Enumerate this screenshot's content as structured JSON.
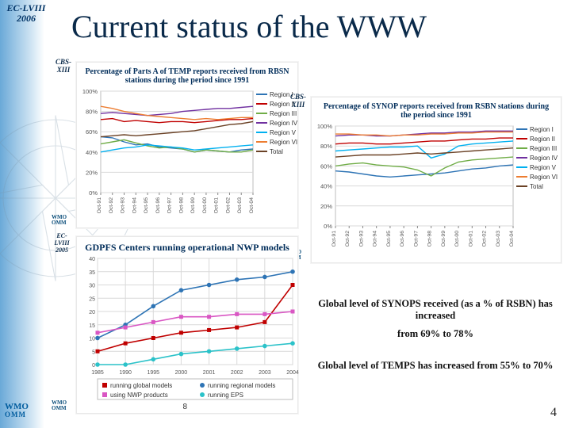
{
  "header": {
    "ec": "EC-LVIII",
    "year": "2006",
    "title": "Current status of the WWW"
  },
  "logo": {
    "wmo": "WMO",
    "omm": "OMM"
  },
  "slide_number": "4",
  "regions_legend": [
    "Region I",
    "Region II",
    "Region III",
    "Region IV",
    "Region V",
    "Region VI",
    "Total"
  ],
  "region_colors": [
    "#2e74b5",
    "#c00000",
    "#70ad47",
    "#7030a0",
    "#00b0f0",
    "#ed7d31",
    "#6b4226"
  ],
  "years": [
    "Oct-91",
    "Oct-92",
    "Oct-93",
    "Oct-94",
    "Oct-95",
    "Oct-96",
    "Oct-97",
    "Oct-98",
    "Oct-99",
    "Oct-00",
    "Oct-01",
    "Oct-02",
    "Oct-03",
    "Oct-04"
  ],
  "panel_temp": {
    "badge": "CBS-XIII",
    "title": "Percentage of Parts A of TEMP reports received from RBSN stations during the period since 1991",
    "ylim": [
      0,
      100
    ],
    "ytick_step": 20,
    "series": {
      "Region I": [
        55,
        54,
        50,
        47,
        48,
        45,
        44,
        43,
        40,
        42,
        41,
        40,
        42,
        43
      ],
      "Region II": [
        72,
        73,
        70,
        71,
        70,
        69,
        70,
        70,
        69,
        70,
        71,
        72,
        72,
        73
      ],
      "Region III": [
        48,
        50,
        52,
        49,
        46,
        44,
        45,
        43,
        40,
        42,
        41,
        40,
        40,
        42
      ],
      "Region IV": [
        78,
        79,
        78,
        77,
        76,
        77,
        78,
        80,
        81,
        82,
        83,
        83,
        84,
        85
      ],
      "Region V": [
        40,
        42,
        44,
        45,
        47,
        46,
        45,
        44,
        42,
        43,
        44,
        45,
        46,
        47
      ],
      "Region VI": [
        85,
        83,
        80,
        78,
        76,
        75,
        74,
        73,
        72,
        73,
        72,
        73,
        74,
        74
      ],
      "Total": [
        55,
        56,
        57,
        56,
        57,
        58,
        59,
        60,
        61,
        63,
        65,
        67,
        68,
        70
      ]
    },
    "grid_color": "#d9d9d9",
    "line_width": 1.4
  },
  "panel_synop": {
    "badge": "CBS-XIII",
    "title": "Percentage of SYNOP reports received from RSBN stations during the period since 1991",
    "ylim": [
      0,
      100
    ],
    "ytick_step": 20,
    "series": {
      "Region I": [
        55,
        54,
        52,
        50,
        49,
        50,
        51,
        52,
        53,
        55,
        57,
        58,
        60,
        61
      ],
      "Region II": [
        82,
        83,
        83,
        82,
        82,
        83,
        84,
        85,
        85,
        86,
        87,
        87,
        88,
        88
      ],
      "Region III": [
        60,
        62,
        63,
        61,
        60,
        59,
        56,
        50,
        58,
        64,
        66,
        67,
        68,
        69
      ],
      "Region IV": [
        90,
        91,
        91,
        90,
        90,
        91,
        92,
        93,
        93,
        94,
        94,
        95,
        95,
        95
      ],
      "Region V": [
        75,
        76,
        77,
        78,
        79,
        79,
        80,
        68,
        72,
        80,
        82,
        83,
        84,
        85
      ],
      "Region VI": [
        92,
        92,
        91,
        91,
        90,
        91,
        91,
        92,
        92,
        93,
        93,
        94,
        94,
        94
      ],
      "Total": [
        69,
        70,
        71,
        71,
        71,
        72,
        73,
        72,
        73,
        74,
        75,
        76,
        77,
        78
      ]
    },
    "grid_color": "#d9d9d9",
    "line_width": 1.4
  },
  "panel_gdpfs": {
    "badge": "EC-LVIII 2005",
    "title": "GDPFS Centers running operational NWP models",
    "panel_number": "8",
    "ylim": [
      0,
      40
    ],
    "ytick_step": 5,
    "years": [
      "1985",
      "1990",
      "1995",
      "2000",
      "2001",
      "2002",
      "2003",
      "2004"
    ],
    "series": {
      "running global models": {
        "color": "#c00000",
        "marker": "square",
        "values": [
          5,
          8,
          10,
          12,
          13,
          14,
          16,
          30
        ]
      },
      "running regional models": {
        "color": "#2e74b5",
        "marker": "circle",
        "values": [
          10,
          15,
          22,
          28,
          30,
          32,
          33,
          35
        ]
      },
      "using NWP products": {
        "color": "#d956c3",
        "marker": "square",
        "values": [
          12,
          14,
          16,
          18,
          18,
          19,
          19,
          20
        ]
      },
      "running EPS": {
        "color": "#2bc2c9",
        "marker": "circle",
        "values": [
          0,
          0,
          2,
          4,
          5,
          6,
          7,
          8
        ]
      }
    },
    "legend_labels": [
      "running global models",
      "running regional models",
      "using NWP products",
      "running EPS"
    ],
    "grid_color": "#d9d9d9",
    "line_width": 1.6
  },
  "footnotes": {
    "synops": "Global level of SYNOPS received (as a % of RSBN) has increased",
    "synops_delta": "from 69% to 78%",
    "temps": "Global level of TEMPS has increased from 55% to 70%"
  },
  "compass": {
    "stroke": "#7a94a8"
  }
}
